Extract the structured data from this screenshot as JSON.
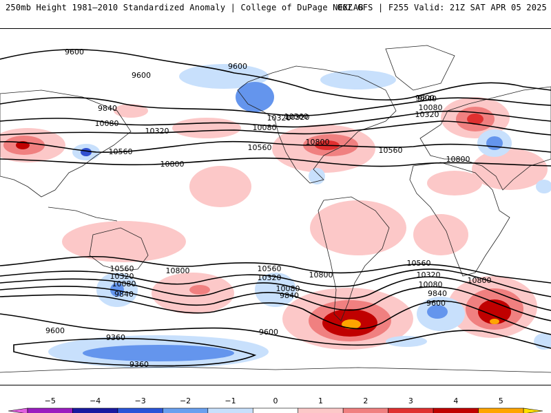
{
  "header": {
    "left_title": "250mb Height 1981–2010 Standardized Anomaly | College of DuPage NEXLAB",
    "right_title": "06Z GFS | F255 Valid: 21Z SAT APR 05 2025"
  },
  "map": {
    "projection": "cylindrical-equidistant-global",
    "field": "250mb height standardized anomaly",
    "contour_labels": [
      "9600",
      "9600",
      "9600",
      "9840",
      "10080",
      "10320",
      "10560",
      "10800",
      "9600",
      "9840",
      "10080",
      "10320",
      "10560",
      "10800",
      "10320",
      "10560",
      "10800",
      "10080",
      "10320",
      "10560",
      "10560",
      "10320",
      "10080",
      "9840",
      "10800",
      "10560",
      "10320",
      "10080",
      "9840",
      "10800",
      "10560",
      "10320",
      "10080",
      "9840",
      "9600",
      "10800",
      "9600",
      "9360",
      "9360",
      "9600"
    ],
    "colors": {
      "pos1": "#fcc8c8",
      "pos2": "#f08080",
      "pos3": "#e03030",
      "pos4": "#c00000",
      "pos5": "#ffa500",
      "neg1": "#c8e0fc",
      "neg2": "#6495ed",
      "neg3": "#3050d0",
      "neg4": "#1a2db0",
      "contour": "#000000",
      "coast": "#222222"
    }
  },
  "colorbar": {
    "ticks": [
      "−5",
      "−4",
      "−3",
      "−2",
      "−1",
      "0",
      "1",
      "2",
      "3",
      "4",
      "5"
    ],
    "bins": [
      {
        "color": "#9a1cc0"
      },
      {
        "color": "#1a1aa0"
      },
      {
        "color": "#2a55d8"
      },
      {
        "color": "#6aa0ef"
      },
      {
        "color": "#c8e0fc"
      },
      {
        "color": "#ffffff"
      },
      {
        "color": "#fcc8c8"
      },
      {
        "color": "#f08080"
      },
      {
        "color": "#e03030"
      },
      {
        "color": "#c00000"
      },
      {
        "color": "#ffa500"
      }
    ],
    "min_end_color": "#e060e0",
    "max_end_color": "#ffe000"
  }
}
